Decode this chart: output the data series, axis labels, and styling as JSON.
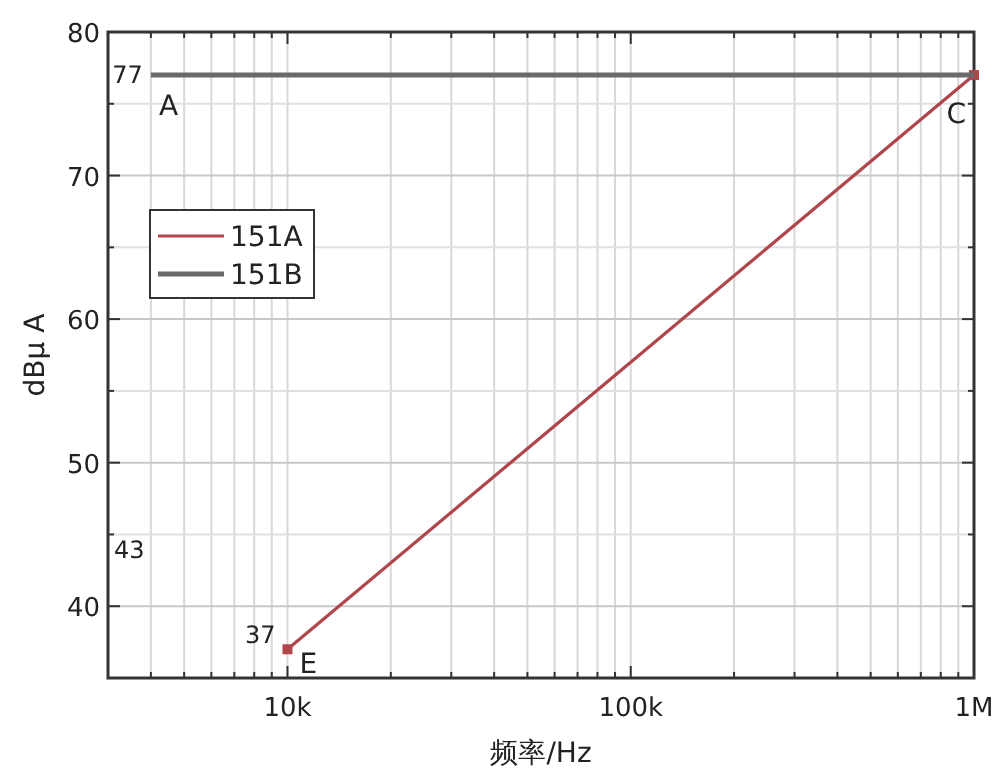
{
  "chart_data": {
    "type": "line",
    "xlabel": "频率/Hz",
    "ylabel": "dBμ A",
    "log": "x",
    "xlim": [
      3000,
      1000000
    ],
    "ylim": [
      35,
      80
    ],
    "xticks": [
      {
        "value": 4000,
        "label": null
      },
      {
        "value": 5000,
        "label": null
      },
      {
        "value": 6000,
        "label": null
      },
      {
        "value": 7000,
        "label": null
      },
      {
        "value": 8000,
        "label": null
      },
      {
        "value": 9000,
        "label": null
      },
      {
        "value": 10000,
        "label": "10k"
      },
      {
        "value": 20000,
        "label": null
      },
      {
        "value": 30000,
        "label": null
      },
      {
        "value": 40000,
        "label": null
      },
      {
        "value": 50000,
        "label": null
      },
      {
        "value": 60000,
        "label": null
      },
      {
        "value": 70000,
        "label": null
      },
      {
        "value": 80000,
        "label": null
      },
      {
        "value": 90000,
        "label": null
      },
      {
        "value": 100000,
        "label": "100k"
      },
      {
        "value": 200000,
        "label": null
      },
      {
        "value": 300000,
        "label": null
      },
      {
        "value": 400000,
        "label": null
      },
      {
        "value": 500000,
        "label": null
      },
      {
        "value": 600000,
        "label": null
      },
      {
        "value": 700000,
        "label": null
      },
      {
        "value": 800000,
        "label": null
      },
      {
        "value": 900000,
        "label": null
      },
      {
        "value": 1000000,
        "label": "1M"
      }
    ],
    "yticks": [
      40,
      {
        "value": 45,
        "label": null
      },
      50,
      {
        "value": 55,
        "label": null
      },
      60,
      {
        "value": 65,
        "label": null
      },
      70,
      {
        "value": 75,
        "label": null
      },
      80
    ],
    "grid": true,
    "legend": "left",
    "series": [
      {
        "name": "151A",
        "color": "#b0464c",
        "x": [
          10000,
          1000000
        ],
        "values": [
          37,
          77
        ],
        "marker": "square"
      },
      {
        "name": "151B",
        "color": "#6a6a6a",
        "x": [
          4000,
          1000000
        ],
        "values": [
          77,
          77
        ]
      }
    ],
    "annotations": [
      {
        "text": "77",
        "x": 4000,
        "y": 77
      },
      {
        "text": "A",
        "x": 4000,
        "y": 77
      },
      {
        "text": "C",
        "x": 1000000,
        "y": 77
      },
      {
        "text": "37",
        "x": 10000,
        "y": 37
      },
      {
        "text": "E",
        "x": 10000,
        "y": 37
      },
      "43"
    ]
  }
}
